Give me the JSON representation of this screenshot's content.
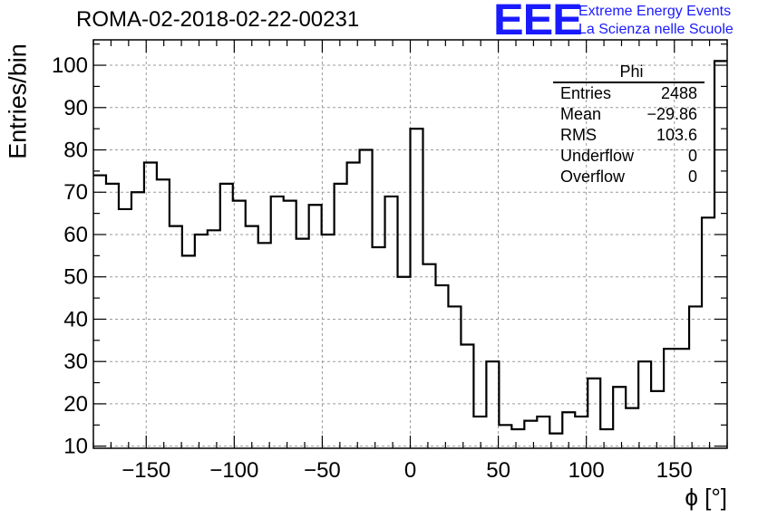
{
  "header": {
    "title": "ROMA-02-2018-02-22-00231",
    "logo_mark": "EEE",
    "logo_line1": "Extreme Energy Events",
    "logo_line2": "La Scienza nelle Scuole"
  },
  "stats": {
    "title": "Phi",
    "rows": [
      {
        "label": "Entries",
        "value": "2488"
      },
      {
        "label": "Mean",
        "value": "−29.86"
      },
      {
        "label": "RMS",
        "value": "103.6"
      },
      {
        "label": "Underflow",
        "value": "0"
      },
      {
        "label": "Overflow",
        "value": "0"
      }
    ]
  },
  "chart_data": {
    "type": "bar",
    "histogram": true,
    "xlabel": "ϕ [°]",
    "ylabel": "Entries/bin",
    "xlim": [
      -180,
      180
    ],
    "ylim": [
      9.5,
      106
    ],
    "bin_width": 7.2,
    "xticks": [
      -150,
      -100,
      -50,
      0,
      50,
      100,
      150
    ],
    "xtick_labels": [
      "−150",
      "−100",
      "−50",
      "0",
      "50",
      "100",
      "150"
    ],
    "yticks": [
      10,
      20,
      30,
      40,
      50,
      60,
      70,
      80,
      90,
      100
    ],
    "yticks_minor": [
      15,
      25,
      35,
      45,
      55,
      65,
      75,
      85,
      95,
      105
    ],
    "grid": true,
    "values": [
      74,
      72,
      66,
      70,
      77,
      73,
      62,
      55,
      60,
      61,
      72,
      68,
      62,
      58,
      69,
      68,
      59,
      67,
      60,
      72,
      77,
      80,
      57,
      69,
      50,
      85,
      53,
      48,
      43,
      34,
      17,
      30,
      15,
      14,
      16,
      17,
      13,
      18,
      17,
      26,
      14,
      24,
      19,
      30,
      23,
      33,
      33,
      43,
      64,
      101
    ]
  }
}
